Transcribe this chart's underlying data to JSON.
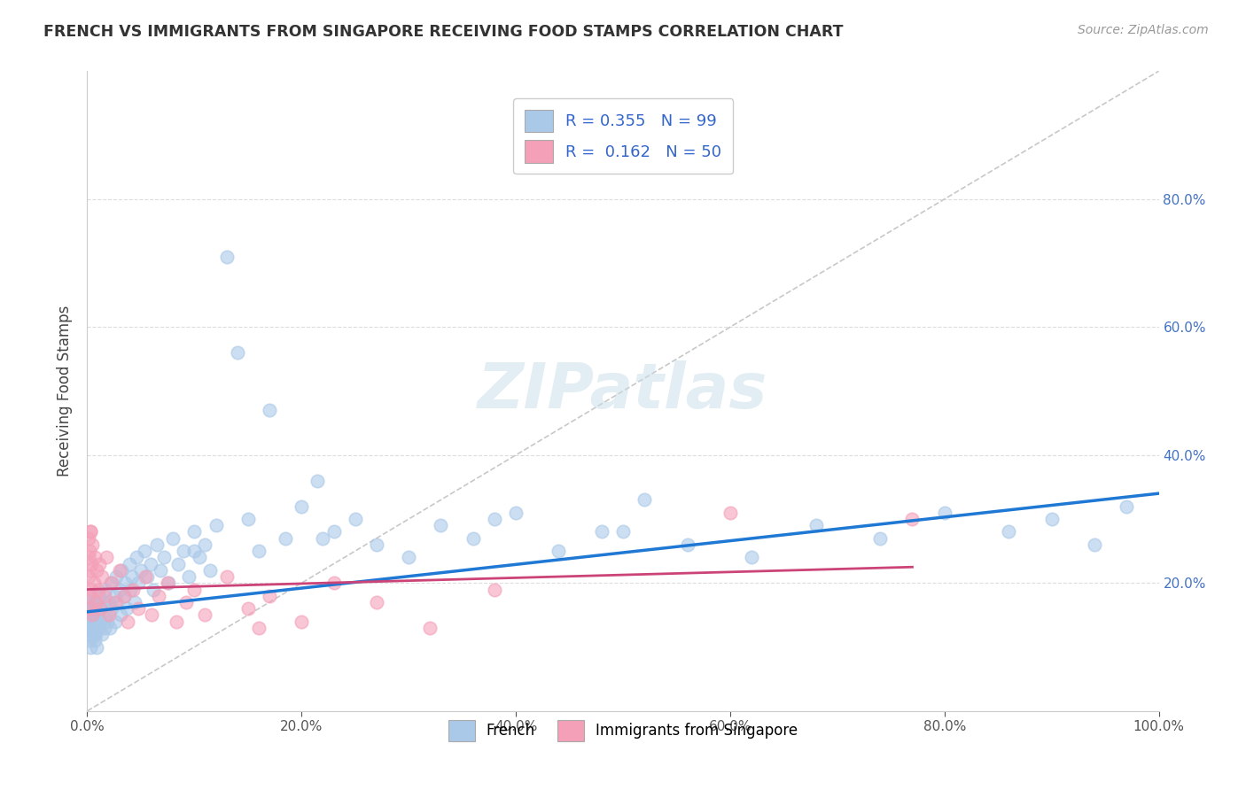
{
  "title": "FRENCH VS IMMIGRANTS FROM SINGAPORE RECEIVING FOOD STAMPS CORRELATION CHART",
  "source": "Source: ZipAtlas.com",
  "ylabel": "Receiving Food Stamps",
  "xlim": [
    0,
    1.0
  ],
  "ylim": [
    0,
    1.0
  ],
  "xticks": [
    0.0,
    0.2,
    0.4,
    0.6,
    0.8,
    1.0
  ],
  "yticks": [
    0.0,
    0.2,
    0.4,
    0.6,
    0.8
  ],
  "xtick_labels": [
    "0.0%",
    "20.0%",
    "40.0%",
    "60.0%",
    "80.0%",
    "100.0%"
  ],
  "ytick_labels_right": [
    "",
    "20.0%",
    "40.0%",
    "60.0%",
    "80.0%"
  ],
  "legend_r1": "0.355",
  "legend_n1": "99",
  "legend_r2": "0.162",
  "legend_n2": "50",
  "series1_color": "#aac8e8",
  "series2_color": "#f4a0b8",
  "trendline1_color": "#1e78d4",
  "trendline2_color": "#cc4477",
  "diagonal_color": "#c8c8c8",
  "watermark": "ZIPatlas",
  "watermark_color": "#c8dcea",
  "background_color": "#ffffff",
  "french_x": [
    0.001,
    0.001,
    0.002,
    0.002,
    0.003,
    0.003,
    0.003,
    0.004,
    0.004,
    0.005,
    0.005,
    0.006,
    0.006,
    0.007,
    0.007,
    0.008,
    0.008,
    0.009,
    0.009,
    0.01,
    0.01,
    0.011,
    0.012,
    0.013,
    0.014,
    0.015,
    0.016,
    0.017,
    0.018,
    0.019,
    0.02,
    0.021,
    0.022,
    0.023,
    0.025,
    0.026,
    0.027,
    0.028,
    0.03,
    0.031,
    0.032,
    0.034,
    0.035,
    0.037,
    0.039,
    0.04,
    0.042,
    0.044,
    0.046,
    0.048,
    0.05,
    0.053,
    0.056,
    0.059,
    0.062,
    0.065,
    0.068,
    0.072,
    0.076,
    0.08,
    0.085,
    0.09,
    0.095,
    0.1,
    0.105,
    0.11,
    0.115,
    0.12,
    0.13,
    0.14,
    0.15,
    0.16,
    0.17,
    0.185,
    0.2,
    0.215,
    0.23,
    0.25,
    0.27,
    0.3,
    0.33,
    0.36,
    0.4,
    0.44,
    0.48,
    0.52,
    0.56,
    0.62,
    0.68,
    0.74,
    0.8,
    0.86,
    0.9,
    0.94,
    0.97,
    0.5,
    0.38,
    0.22,
    0.1
  ],
  "french_y": [
    0.15,
    0.13,
    0.16,
    0.11,
    0.17,
    0.12,
    0.1,
    0.14,
    0.18,
    0.13,
    0.16,
    0.12,
    0.15,
    0.11,
    0.17,
    0.14,
    0.12,
    0.16,
    0.1,
    0.15,
    0.13,
    0.18,
    0.14,
    0.16,
    0.12,
    0.17,
    0.13,
    0.19,
    0.15,
    0.14,
    0.17,
    0.13,
    0.2,
    0.16,
    0.18,
    0.14,
    0.21,
    0.17,
    0.19,
    0.15,
    0.22,
    0.18,
    0.2,
    0.16,
    0.23,
    0.19,
    0.21,
    0.17,
    0.24,
    0.2,
    0.22,
    0.25,
    0.21,
    0.23,
    0.19,
    0.26,
    0.22,
    0.24,
    0.2,
    0.27,
    0.23,
    0.25,
    0.21,
    0.28,
    0.24,
    0.26,
    0.22,
    0.29,
    0.71,
    0.56,
    0.3,
    0.25,
    0.47,
    0.27,
    0.32,
    0.36,
    0.28,
    0.3,
    0.26,
    0.24,
    0.29,
    0.27,
    0.31,
    0.25,
    0.28,
    0.33,
    0.26,
    0.24,
    0.29,
    0.27,
    0.31,
    0.28,
    0.3,
    0.26,
    0.32,
    0.28,
    0.3,
    0.27,
    0.25
  ],
  "singapore_x": [
    0.001,
    0.001,
    0.001,
    0.002,
    0.002,
    0.002,
    0.003,
    0.003,
    0.004,
    0.004,
    0.005,
    0.005,
    0.006,
    0.007,
    0.008,
    0.009,
    0.01,
    0.011,
    0.012,
    0.014,
    0.016,
    0.018,
    0.02,
    0.023,
    0.026,
    0.03,
    0.034,
    0.038,
    0.043,
    0.048,
    0.054,
    0.06,
    0.067,
    0.075,
    0.083,
    0.092,
    0.1,
    0.11,
    0.13,
    0.15,
    0.17,
    0.2,
    0.23,
    0.27,
    0.32,
    0.38,
    0.16,
    0.6,
    0.77,
    0.003
  ],
  "singapore_y": [
    0.27,
    0.24,
    0.21,
    0.25,
    0.18,
    0.22,
    0.28,
    0.16,
    0.23,
    0.19,
    0.26,
    0.15,
    0.2,
    0.24,
    0.17,
    0.22,
    0.19,
    0.23,
    0.16,
    0.21,
    0.18,
    0.24,
    0.15,
    0.2,
    0.17,
    0.22,
    0.18,
    0.14,
    0.19,
    0.16,
    0.21,
    0.15,
    0.18,
    0.2,
    0.14,
    0.17,
    0.19,
    0.15,
    0.21,
    0.16,
    0.18,
    0.14,
    0.2,
    0.17,
    0.13,
    0.19,
    0.13,
    0.31,
    0.3,
    0.28
  ],
  "trendline1_x": [
    0.0,
    1.0
  ],
  "trendline1_y": [
    0.155,
    0.34
  ],
  "trendline2_x": [
    0.0,
    0.77
  ],
  "trendline2_y": [
    0.19,
    0.225
  ],
  "figsize": [
    14.06,
    8.92
  ],
  "dpi": 100
}
